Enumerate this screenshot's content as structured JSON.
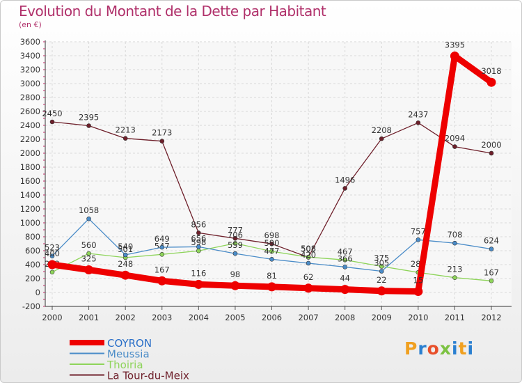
{
  "header": {
    "title": "Evolution du Montant de la Dette par Habitant",
    "subtitle": "(en €)"
  },
  "logo": {
    "letters": [
      "P",
      "r",
      "o",
      "x",
      "i",
      "t",
      "i"
    ],
    "colors": [
      "#f0a020",
      "#2a7fd0",
      "#e84f2a",
      "#7cc242",
      "#2a7fd0",
      "#f0a020",
      "#2a7fd0"
    ]
  },
  "chart_data": {
    "type": "line",
    "x": [
      "2000",
      "2001",
      "2002",
      "2003",
      "2004",
      "2005",
      "2006",
      "2007",
      "2008",
      "2009",
      "2010",
      "2011",
      "2012"
    ],
    "ylim": [
      -200,
      3600
    ],
    "yticks": [
      -200,
      0,
      200,
      400,
      600,
      800,
      1000,
      1200,
      1400,
      1600,
      1800,
      2000,
      2200,
      2400,
      2600,
      2800,
      3000,
      3200,
      3400,
      3600
    ],
    "grid": true,
    "legend_position": "bottom-left",
    "series": [
      {
        "name": "La Tour-du-Meix",
        "color": "#6e1f2a",
        "values": [
          2450,
          2395,
          2213,
          2173,
          856,
          777,
          698,
          505,
          1496,
          2208,
          2437,
          2094,
          2000
        ]
      },
      {
        "name": "Thoiria",
        "color": "#8ed45a",
        "values": [
          292,
          560,
          501,
          547,
          598,
          706,
          590,
          508,
          467,
          375,
          288,
          213,
          167
        ]
      },
      {
        "name": "Meussia",
        "color": "#4a8cc8",
        "values": [
          523,
          1058,
          540,
          649,
          656,
          559,
          477,
          420,
          366,
          305,
          757,
          708,
          624
        ]
      },
      {
        "name": "COYRON",
        "color": "#ee0000",
        "values": [
          400,
          325,
          248,
          167,
          116,
          98,
          81,
          62,
          44,
          22,
          15,
          3395,
          3018
        ]
      }
    ]
  }
}
